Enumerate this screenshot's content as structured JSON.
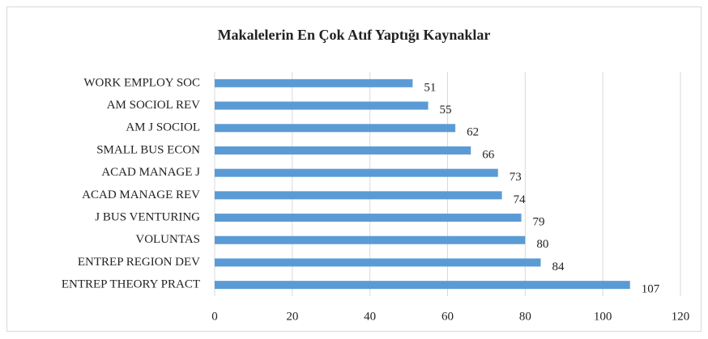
{
  "chart_data": {
    "type": "bar",
    "orientation": "horizontal",
    "title": "Makalelerin En Çok Atıf Yaptığı Kaynaklar",
    "categories": [
      "WORK EMPLOY SOC",
      "AM SOCIOL REV",
      "AM J SOCIOL",
      "SMALL BUS ECON",
      "ACAD MANAGE J",
      "ACAD MANAGE REV",
      "J BUS VENTURING",
      "VOLUNTAS",
      "ENTREP REGION DEV",
      "ENTREP THEORY PRACT"
    ],
    "values": [
      51,
      55,
      62,
      66,
      73,
      74,
      79,
      80,
      84,
      107
    ],
    "color": "#5b9bd5",
    "xlim": [
      0,
      120
    ],
    "xticks": [
      0,
      20,
      40,
      60,
      80,
      100,
      120
    ],
    "grid": true
  }
}
